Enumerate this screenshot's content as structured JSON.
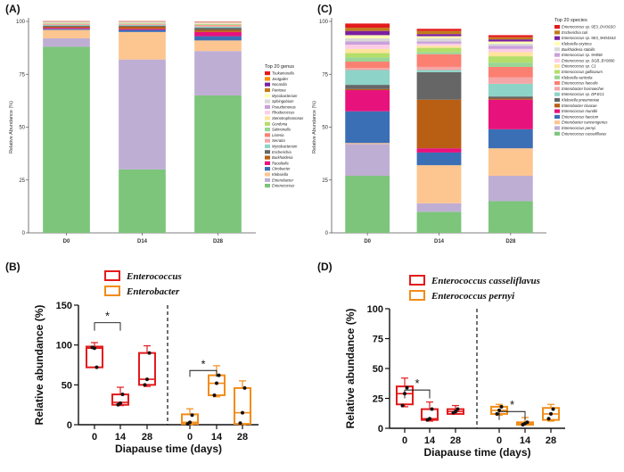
{
  "panels": {
    "A": "(A)",
    "B": "(B)",
    "C": "(C)",
    "D": "(D)"
  },
  "chart_data": [
    {
      "id": "A",
      "type": "bar",
      "stacked": true,
      "ylabel": "Relative Abundance (%)",
      "ylim": [
        0,
        100
      ],
      "yticks": [
        "0",
        "25",
        "50",
        "75",
        "100"
      ],
      "categories": [
        "D0",
        "D14",
        "D28"
      ],
      "legend_title": "Top 20 genus",
      "legend_position": "right",
      "series": [
        {
          "name": "Enterococcus",
          "color": "#7cc57a",
          "values": [
            88,
            30,
            65
          ]
        },
        {
          "name": "Enterobacter",
          "color": "#bfaed4",
          "values": [
            4,
            52,
            21
          ]
        },
        {
          "name": "Klebsiella",
          "color": "#fdc58f",
          "values": [
            4,
            13,
            5
          ]
        },
        {
          "name": "Citrobacter",
          "color": "#3a6fb6",
          "values": [
            0.5,
            1,
            2
          ]
        },
        {
          "name": "Raoultella",
          "color": "#e8127c",
          "values": [
            0.5,
            0.5,
            2
          ]
        },
        {
          "name": "Burkholderia",
          "color": "#b85f14",
          "values": [
            0.5,
            1,
            1
          ]
        },
        {
          "name": "Escherichia",
          "color": "#666666",
          "values": [
            0.5,
            0.5,
            1
          ]
        },
        {
          "name": "Mycobacterium",
          "color": "#8dd3c7",
          "values": [
            0.3,
            0.3,
            0.5
          ]
        },
        {
          "name": "Serratia",
          "color": "#f4a6a6",
          "values": [
            0.3,
            0.3,
            0.5
          ]
        },
        {
          "name": "Listeria",
          "color": "#fb8072",
          "values": [
            0.2,
            0.2,
            0.3
          ]
        },
        {
          "name": "Salmonella",
          "color": "#99d594",
          "values": [
            0.2,
            0.2,
            0.3
          ]
        },
        {
          "name": "Gordonia",
          "color": "#b3de69",
          "values": [
            0.2,
            0.2,
            0.2
          ]
        },
        {
          "name": "Stenotrophomonas",
          "color": "#ffe49c",
          "values": [
            0.2,
            0.2,
            0.2
          ]
        },
        {
          "name": "Rhodococcus",
          "color": "#fccde5",
          "values": [
            0.1,
            0.1,
            0.2
          ]
        },
        {
          "name": "Pseudomonas",
          "color": "#c9a0dc",
          "values": [
            0.1,
            0.1,
            0.1
          ]
        },
        {
          "name": "Sphingobium",
          "color": "#d9d9d9",
          "values": [
            0.1,
            0.1,
            0.1
          ]
        },
        {
          "name": "Mycobacterium",
          "color": "#ffffb3",
          "values": [
            0.1,
            0.1,
            0.1
          ]
        },
        {
          "name": "Pantoea",
          "color": "#c07b1c",
          "values": [
            0.1,
            0.1,
            0.1
          ]
        },
        {
          "name": "Nocardia",
          "color": "#7b1fa2",
          "values": [
            0.1,
            0.1,
            0.1
          ]
        },
        {
          "name": "Jeotgalier",
          "color": "#ff8c00",
          "values": [
            0.1,
            0.1,
            0.1
          ]
        },
        {
          "name": "Tsukamurella",
          "color": "#e41a1c",
          "values": [
            0.1,
            0.1,
            0.1
          ]
        }
      ]
    },
    {
      "id": "C",
      "type": "bar",
      "stacked": true,
      "ylabel": "Relative Abundance (%)",
      "ylim": [
        0,
        100
      ],
      "yticks": [
        "0",
        "25",
        "50",
        "75",
        "100"
      ],
      "categories": [
        "D0",
        "D14",
        "D28"
      ],
      "legend_title": "Top 20 species",
      "legend_position": "right",
      "series": [
        {
          "name": "Enterococcus casseliflavus",
          "color": "#7cc57a",
          "values": [
            27,
            10,
            15
          ]
        },
        {
          "name": "Enterococcus pernyi",
          "color": "#bfaed4",
          "values": [
            15,
            4,
            12
          ]
        },
        {
          "name": "Enterobacter cancerogenus",
          "color": "#fdc58f",
          "values": [
            0.5,
            18,
            13
          ]
        },
        {
          "name": "Enterococcus faecium",
          "color": "#3a6fb6",
          "values": [
            15,
            6,
            9
          ]
        },
        {
          "name": "Enterococcus mundtii",
          "color": "#e8127c",
          "values": [
            10,
            2,
            14
          ]
        },
        {
          "name": "Enterobacter cloacae",
          "color": "#b85f14",
          "values": [
            0.5,
            23,
            0.5
          ]
        },
        {
          "name": "Klebsiella pneumoniae",
          "color": "#666666",
          "values": [
            2,
            13,
            1
          ]
        },
        {
          "name": "Enterococcus sp. DP.EC1",
          "color": "#8dd3c7",
          "values": [
            7,
            1,
            6
          ]
        },
        {
          "name": "Enterobacter hormaechei",
          "color": "#f4a6a6",
          "values": [
            1,
            1.5,
            3
          ]
        },
        {
          "name": "Enterococcus faecalis",
          "color": "#fb8072",
          "values": [
            3,
            6,
            5
          ]
        },
        {
          "name": "Klebsiella variicola",
          "color": "#99d594",
          "values": [
            2,
            1,
            2
          ]
        },
        {
          "name": "Enterococcus gallinarum",
          "color": "#b3de69",
          "values": [
            2,
            2,
            3
          ]
        },
        {
          "name": "Enterococcus sp. C1",
          "color": "#ffe49c",
          "values": [
            2,
            1,
            2
          ]
        },
        {
          "name": "Enterococcus sp. SGB_BY0800",
          "color": "#fccde5",
          "values": [
            2,
            1,
            1.5
          ]
        },
        {
          "name": "Enterococcus sp. 9H058",
          "color": "#c9a0dc",
          "values": [
            1.5,
            1,
            1.5
          ]
        },
        {
          "name": "Burkholderia stabilis",
          "color": "#d9d9d9",
          "values": [
            1.5,
            1.5,
            1
          ]
        },
        {
          "name": "Klebsiella oxytoca",
          "color": "#ffffb3",
          "values": [
            1.5,
            1,
            1
          ]
        },
        {
          "name": "Enterococcus sp. 9E3_9H04S43",
          "color": "#7b1fa2",
          "values": [
            2,
            1,
            1
          ]
        },
        {
          "name": "Escherichia coli",
          "color": "#c07b1c",
          "values": [
            1.5,
            1.5,
            1
          ]
        },
        {
          "name": "Enterococcus sp. 9E3_DVO6SO",
          "color": "#e41a1c",
          "values": [
            2,
            1,
            1
          ]
        }
      ]
    },
    {
      "id": "B",
      "type": "box",
      "ylabel": "Relative abundance (%)",
      "xlabel": "Diapause time (days)",
      "ylim": [
        0,
        150
      ],
      "yticks": [
        "0",
        "50",
        "100",
        "150"
      ],
      "xticks": [
        "0",
        "14",
        "28",
        "0",
        "14",
        "28"
      ],
      "significance": "*",
      "series": [
        {
          "name": "Enterococcus",
          "color": "#e41a1c",
          "boxes": [
            {
              "x": "0",
              "min": 72,
              "q1": 72,
              "median": 96,
              "q3": 98,
              "max": 103,
              "points": [
                97,
                96,
                72
              ]
            },
            {
              "x": "14",
              "min": 24,
              "q1": 25,
              "median": 28,
              "q3": 38,
              "max": 47,
              "points": [
                25,
                27,
                38
              ]
            },
            {
              "x": "28",
              "min": 48,
              "q1": 50,
              "median": 57,
              "q3": 90,
              "max": 99,
              "points": [
                50,
                57,
                90
              ]
            }
          ]
        },
        {
          "name": "Enterobacter",
          "color": "#f28c18",
          "boxes": [
            {
              "x": "0",
              "min": 0,
              "q1": 1,
              "median": 3,
              "q3": 13,
              "max": 20,
              "points": [
                1,
                3,
                12
              ]
            },
            {
              "x": "14",
              "min": 35,
              "q1": 37,
              "median": 52,
              "q3": 62,
              "max": 74,
              "points": [
                37,
                52,
                62
              ]
            },
            {
              "x": "28",
              "min": 0,
              "q1": 1,
              "median": 15,
              "q3": 46,
              "max": 55,
              "points": [
                2,
                15,
                46
              ]
            }
          ]
        }
      ]
    },
    {
      "id": "D",
      "type": "box",
      "ylabel": "Relative abundance (%)",
      "xlabel": "Diapause time (days)",
      "ylim": [
        0,
        100
      ],
      "yticks": [
        "0",
        "25",
        "50",
        "75",
        "100"
      ],
      "xticks": [
        "0",
        "14",
        "28",
        "0",
        "14",
        "28"
      ],
      "significance": "*",
      "series": [
        {
          "name": "Enterococcus casseliflavus",
          "color": "#e41a1c",
          "boxes": [
            {
              "x": "0",
              "min": 18,
              "q1": 20,
              "median": 29,
              "q3": 35,
              "max": 42,
              "points": [
                19,
                29,
                34
              ]
            },
            {
              "x": "14",
              "min": 6,
              "q1": 7,
              "median": 8,
              "q3": 16,
              "max": 22,
              "points": [
                7,
                8,
                16
              ]
            },
            {
              "x": "28",
              "min": 12,
              "q1": 12,
              "median": 14,
              "q3": 16,
              "max": 19,
              "points": [
                13,
                14,
                16
              ]
            }
          ]
        },
        {
          "name": "Enterococcus pernyi",
          "color": "#f28c18",
          "boxes": [
            {
              "x": "0",
              "min": 11,
              "q1": 12,
              "median": 15,
              "q3": 18,
              "max": 20,
              "points": [
                12,
                15,
                18
              ]
            },
            {
              "x": "14",
              "min": 3,
              "q1": 3,
              "median": 4,
              "q3": 5,
              "max": 9,
              "points": [
                3,
                4,
                5
              ]
            },
            {
              "x": "28",
              "min": 6,
              "q1": 7,
              "median": 12,
              "q3": 17,
              "max": 20,
              "points": [
                8,
                12,
                16
              ]
            }
          ]
        }
      ]
    }
  ]
}
